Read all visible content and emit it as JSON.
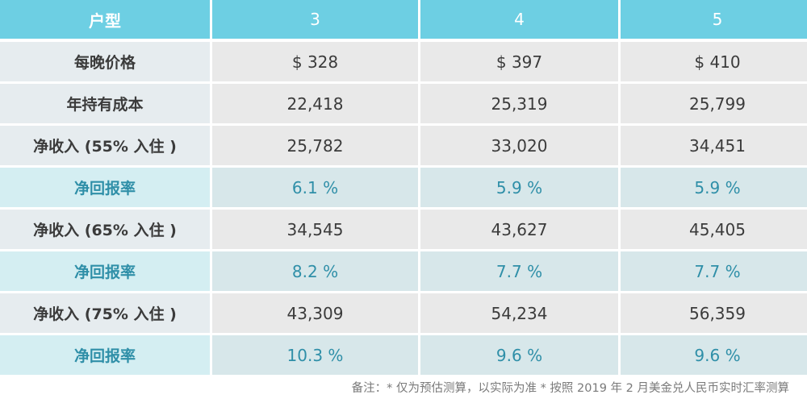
{
  "table": {
    "header": {
      "label": "户型",
      "columns": [
        "3",
        "4",
        "5"
      ]
    },
    "rows": [
      {
        "kind": "data",
        "label": "每晚价格",
        "values": [
          "$ 328",
          "$ 397",
          "$ 410"
        ]
      },
      {
        "kind": "data",
        "label": "年持有成本",
        "values": [
          "22,418",
          "25,319",
          "25,799"
        ]
      },
      {
        "kind": "data",
        "label": "净收入 (55% 入住 )",
        "values": [
          "25,782",
          "33,020",
          "34,451"
        ]
      },
      {
        "kind": "rate",
        "label": "净回报率",
        "values": [
          "6.1 %",
          "5.9 %",
          "5.9 %"
        ]
      },
      {
        "kind": "data",
        "label": "净收入 (65% 入住 )",
        "values": [
          "34,545",
          "43,627",
          "45,405"
        ]
      },
      {
        "kind": "rate",
        "label": "净回报率",
        "values": [
          "8.2 %",
          "7.7 %",
          "7.7 %"
        ]
      },
      {
        "kind": "data",
        "label": "净收入 (75% 入住 )",
        "values": [
          "43,309",
          "54,234",
          "56,359"
        ]
      },
      {
        "kind": "rate",
        "label": "净回报率",
        "values": [
          "10.3 %",
          "9.6 %",
          "9.6 %"
        ]
      }
    ]
  },
  "footnote": "备注：* 仅为预估测算，以实际为准   * 按照 2019 年 2 月美金兑人民币实时汇率测算",
  "colors": {
    "header_bg": "#6dcfe3",
    "label_bg": "#e6ecef",
    "value_bg": "#e9e9e9",
    "rate_label_bg": "#d4eef2",
    "rate_value_bg": "#d7e7ea",
    "rate_text": "#2f8fa8"
  }
}
